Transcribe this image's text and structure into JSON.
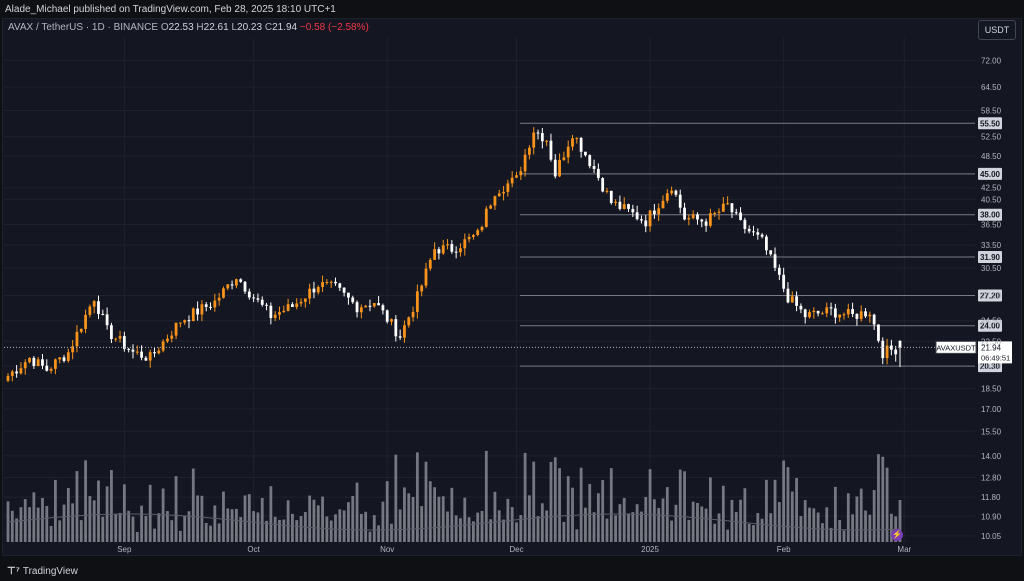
{
  "header": {
    "published": "Alade_Michael published on TradingView.com, Feb 28, 2025 18:10 UTC+1"
  },
  "legend": {
    "symbol": "AVAX / TetherUS · 1D · BINANCE",
    "o_label": "O",
    "o": "22.53",
    "h_label": "H",
    "h": "22.61",
    "l_label": "L",
    "l": "20.23",
    "c_label": "C",
    "c": "21.94",
    "change": "−0.58 (−2.58%)"
  },
  "currency_button": "USDT",
  "footer": {
    "brand": "TradingView"
  },
  "icons": {
    "logo": "tradingview-logo-icon",
    "alert": "lightning-icon"
  },
  "colors": {
    "up": "#f7931a",
    "down": "#ffffff",
    "bg": "#141722",
    "grid": "#1e222d",
    "level": "#787b86",
    "volume": "#9598a1"
  },
  "chart_data": {
    "type": "candlestick",
    "title": "",
    "interval": "1D",
    "y_scale": "log",
    "ylim": [
      9.8,
      79
    ],
    "y_ticks": [
      72.0,
      64.5,
      58.5,
      52.5,
      48.5,
      42.5,
      40.5,
      36.5,
      33.5,
      30.5,
      27.2,
      24.5,
      22.5,
      20.3,
      18.5,
      17.0,
      15.5,
      14.0,
      12.8,
      11.8,
      10.9,
      10.05
    ],
    "y_tick_labels": [
      "72.00",
      "64.50",
      "58.50",
      "52.50",
      "48.50",
      "42.50",
      "40.50",
      "36.50",
      "33.50",
      "30.50",
      "27.20",
      "24.50",
      "22.50",
      "20.30",
      "18.50",
      "17.00",
      "15.50",
      "14.00",
      "12.80",
      "11.80",
      "10.90",
      "10.05"
    ],
    "x_ticks": [
      {
        "label": "Sep",
        "date": "2024-09-01"
      },
      {
        "label": "Oct",
        "date": "2024-10-01"
      },
      {
        "label": "Nov",
        "date": "2024-11-01"
      },
      {
        "label": "Dec",
        "date": "2024-12-01"
      },
      {
        "label": "2025",
        "date": "2025-01-01"
      },
      {
        "label": "Feb",
        "date": "2025-02-01"
      },
      {
        "label": "Mar",
        "date": "2025-03-01"
      }
    ],
    "horizontal_levels": [
      55.5,
      45.0,
      38.0,
      31.9,
      27.2,
      24.0,
      20.3
    ],
    "horizontal_level_labels": [
      "55.50",
      "45.00",
      "38.00",
      "31.90",
      "27.20",
      "24.00",
      "20.30"
    ],
    "last_price": {
      "symbol": "AVAXUSDT",
      "value": 21.94,
      "value_label": "21.94",
      "countdown": "06:49:51"
    },
    "series_close_anchors": [
      {
        "date": "2024-08-05",
        "close": 19.5
      },
      {
        "date": "2024-08-10",
        "close": 21.0
      },
      {
        "date": "2024-08-14",
        "close": 20.0
      },
      {
        "date": "2024-08-19",
        "close": 21.5
      },
      {
        "date": "2024-08-25",
        "close": 27.0
      },
      {
        "date": "2024-08-28",
        "close": 23.5
      },
      {
        "date": "2024-09-03",
        "close": 21.5
      },
      {
        "date": "2024-09-07",
        "close": 21.0
      },
      {
        "date": "2024-09-14",
        "close": 24.5
      },
      {
        "date": "2024-09-22",
        "close": 26.5
      },
      {
        "date": "2024-09-27",
        "close": 29.5
      },
      {
        "date": "2024-10-01",
        "close": 27.0
      },
      {
        "date": "2024-10-05",
        "close": 25.0
      },
      {
        "date": "2024-10-10",
        "close": 26.0
      },
      {
        "date": "2024-10-16",
        "close": 28.5
      },
      {
        "date": "2024-10-20",
        "close": 28.0
      },
      {
        "date": "2024-10-25",
        "close": 26.0
      },
      {
        "date": "2024-10-29",
        "close": 26.5
      },
      {
        "date": "2024-11-04",
        "close": 23.0
      },
      {
        "date": "2024-11-08",
        "close": 27.0
      },
      {
        "date": "2024-11-12",
        "close": 33.0
      },
      {
        "date": "2024-11-16",
        "close": 33.0
      },
      {
        "date": "2024-11-22",
        "close": 35.0
      },
      {
        "date": "2024-11-26",
        "close": 42.0
      },
      {
        "date": "2024-12-01",
        "close": 44.0
      },
      {
        "date": "2024-12-05",
        "close": 54.0
      },
      {
        "date": "2024-12-08",
        "close": 52.0
      },
      {
        "date": "2024-12-10",
        "close": 45.0
      },
      {
        "date": "2024-12-14",
        "close": 53.5
      },
      {
        "date": "2024-12-19",
        "close": 46.0
      },
      {
        "date": "2024-12-23",
        "close": 40.0
      },
      {
        "date": "2024-12-27",
        "close": 38.5
      },
      {
        "date": "2024-12-31",
        "close": 37.0
      },
      {
        "date": "2025-01-06",
        "close": 43.0
      },
      {
        "date": "2025-01-09",
        "close": 37.5
      },
      {
        "date": "2025-01-14",
        "close": 37.0
      },
      {
        "date": "2025-01-19",
        "close": 39.5
      },
      {
        "date": "2025-01-22",
        "close": 36.5
      },
      {
        "date": "2025-01-27",
        "close": 34.0
      },
      {
        "date": "2025-02-02",
        "close": 27.0
      },
      {
        "date": "2025-02-06",
        "close": 25.0
      },
      {
        "date": "2025-02-12",
        "close": 25.5
      },
      {
        "date": "2025-02-17",
        "close": 25.0
      },
      {
        "date": "2025-02-21",
        "close": 25.5
      },
      {
        "date": "2025-02-24",
        "close": 21.5
      },
      {
        "date": "2025-02-28",
        "close": 21.94
      }
    ],
    "ohlc_last": {
      "date": "2025-02-28",
      "open": 22.53,
      "high": 22.61,
      "low": 20.23,
      "close": 21.94
    }
  }
}
